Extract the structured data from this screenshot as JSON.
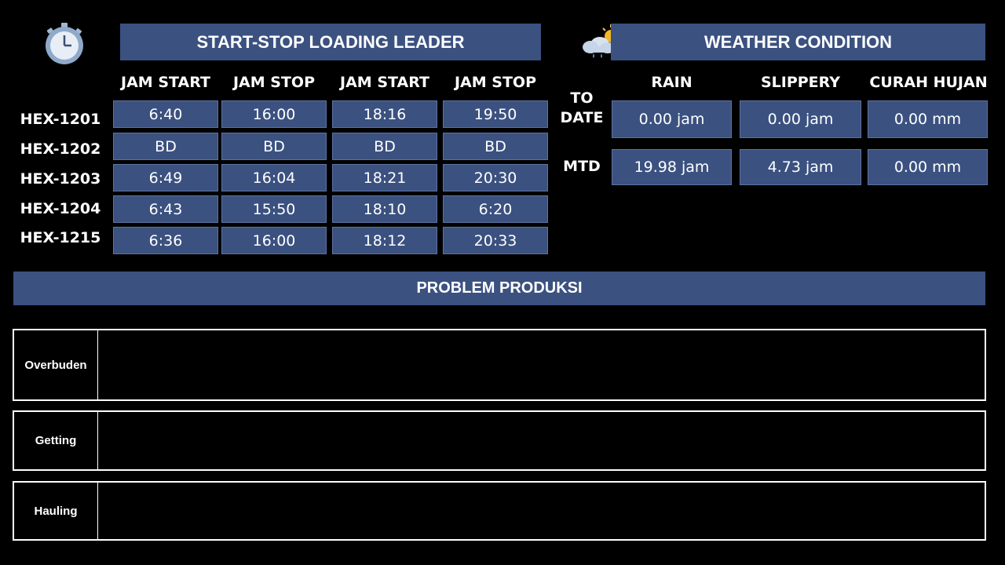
{
  "loading": {
    "title": "START-STOP LOADING LEADER",
    "icon": "stopwatch-icon",
    "columns": [
      "JAM START",
      "JAM STOP",
      "JAM START",
      "JAM STOP"
    ],
    "rows": [
      {
        "unit": "HEX-1201",
        "values": [
          "6:40",
          "16:00",
          "18:16",
          "19:50"
        ]
      },
      {
        "unit": "HEX-1202",
        "values": [
          "BD",
          "BD",
          "BD",
          "BD"
        ]
      },
      {
        "unit": "HEX-1203",
        "values": [
          "6:49",
          "16:04",
          "18:21",
          "20:30"
        ]
      },
      {
        "unit": "HEX-1204",
        "values": [
          "6:43",
          "15:50",
          "18:10",
          "6:20"
        ]
      },
      {
        "unit": "HEX-1215",
        "values": [
          "6:36",
          "16:00",
          "18:12",
          "20:33"
        ]
      }
    ]
  },
  "weather": {
    "title": "WEATHER CONDITION",
    "icon": "cloud-sun-rain-icon",
    "columns": [
      "RAIN",
      "SLIPPERY",
      "CURAH HUJAN"
    ],
    "rows": [
      {
        "label": "TO\nDATE",
        "values": [
          "0.00 jam",
          "0.00 jam",
          "0.00 mm"
        ]
      },
      {
        "label": "MTD",
        "values": [
          "19.98 jam",
          "4.73 jam",
          "0.00 mm"
        ]
      }
    ]
  },
  "problem": {
    "title": "PROBLEM PRODUKSI",
    "items": [
      "Overbuden",
      "Getting",
      "Hauling"
    ]
  },
  "colors": {
    "accent": "#3b5180",
    "background": "#000000"
  }
}
